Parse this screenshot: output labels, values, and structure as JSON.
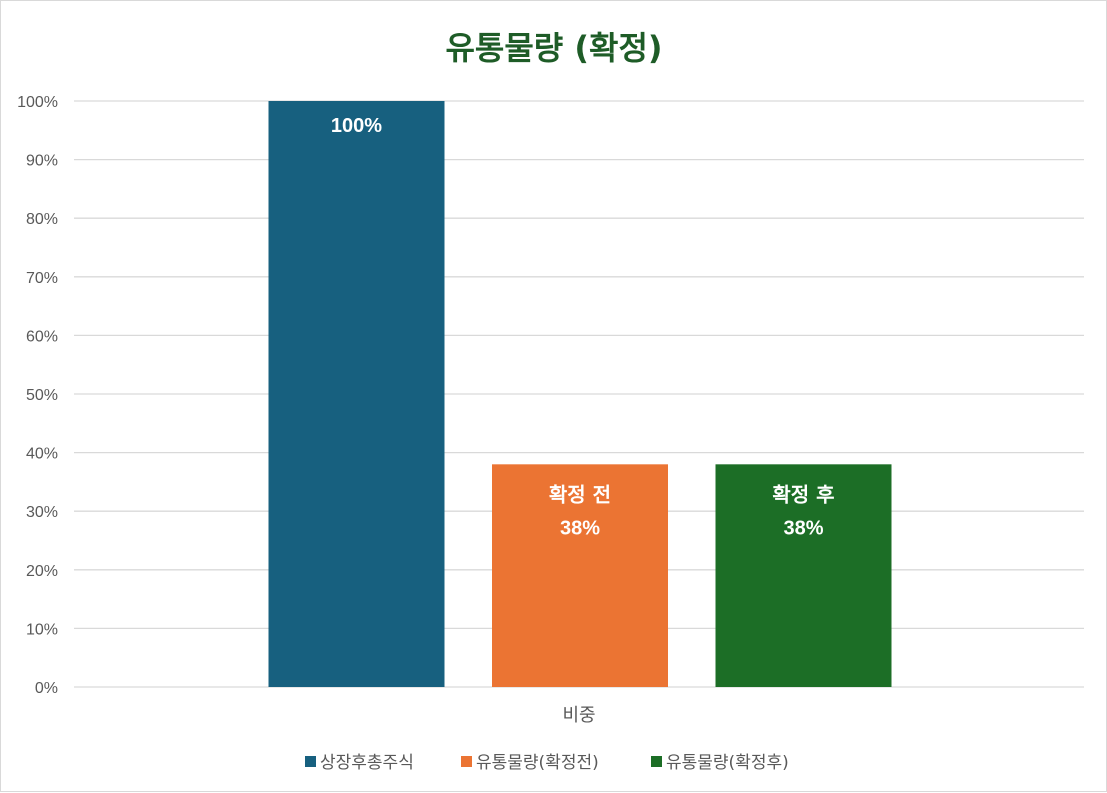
{
  "chart_data": {
    "type": "bar",
    "title": "유통물량 (확정)",
    "categories": [
      "비중"
    ],
    "series": [
      {
        "name": "상장후총주식",
        "values": [
          100
        ],
        "color": "#17607f",
        "label_name": "",
        "label_value": "100%"
      },
      {
        "name": "유통물량(확정전)",
        "values": [
          38
        ],
        "color": "#eb7433",
        "label_name": "확정 전",
        "label_value": "38%"
      },
      {
        "name": "유통물량(확정후)",
        "values": [
          38
        ],
        "color": "#1c6e26",
        "label_name": "확정 후",
        "label_value": "38%"
      }
    ],
    "ylim": [
      0,
      100
    ],
    "yticks": [
      "0%",
      "10%",
      "20%",
      "30%",
      "40%",
      "50%",
      "60%",
      "70%",
      "80%",
      "90%",
      "100%"
    ],
    "xlabel": "",
    "ylabel": "",
    "grid": true,
    "legend_position": "bottom"
  }
}
